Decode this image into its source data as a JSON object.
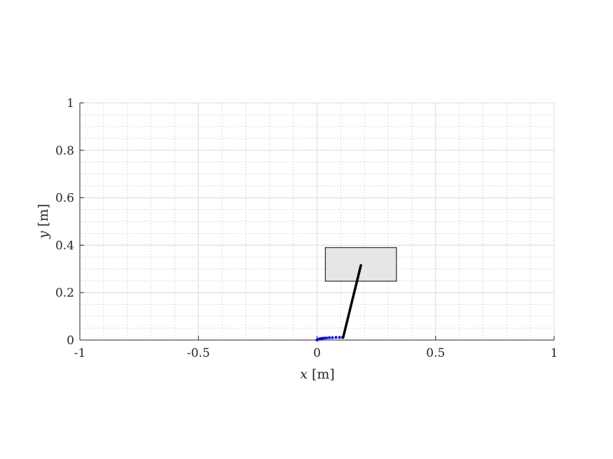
{
  "chart_data": {
    "type": "scatter",
    "title": "",
    "xlabel_var": "x",
    "xlabel_unit": " [m]",
    "ylabel_var": "y",
    "ylabel_unit": " [m]",
    "xlim": [
      -1,
      1
    ],
    "ylim": [
      0,
      1
    ],
    "x_ticks": [
      -1,
      -0.5,
      0,
      0.5,
      1
    ],
    "x_tick_labels": [
      "-1",
      "-0.5",
      "0",
      "0.5",
      "1"
    ],
    "y_ticks": [
      0,
      0.2,
      0.4,
      0.6,
      0.8,
      1
    ],
    "y_tick_labels": [
      "0",
      "0.2",
      "0.4",
      "0.6",
      "0.8",
      "1"
    ],
    "minor_step_x": 0.1,
    "minor_step_y": 0.05,
    "grid": true,
    "minor_grid": true,
    "rectangle": {
      "x0": 0.035,
      "x1": 0.335,
      "y0": 0.248,
      "y1": 0.39,
      "fill": "#e6e6e6",
      "edge": "#000000"
    },
    "link": {
      "x0": 0.11,
      "y0": 0.01,
      "x1": 0.185,
      "y1": 0.315,
      "color": "#000000"
    },
    "trajectory": {
      "color": "#0000ff",
      "x": [
        0.0,
        0.005,
        0.01,
        0.015,
        0.022,
        0.03,
        0.04,
        0.052,
        0.065,
        0.08,
        0.095,
        0.108
      ],
      "y": [
        0.0,
        0.003,
        0.005,
        0.006,
        0.007,
        0.008,
        0.009,
        0.01,
        0.01,
        0.011,
        0.011,
        0.011
      ]
    }
  }
}
